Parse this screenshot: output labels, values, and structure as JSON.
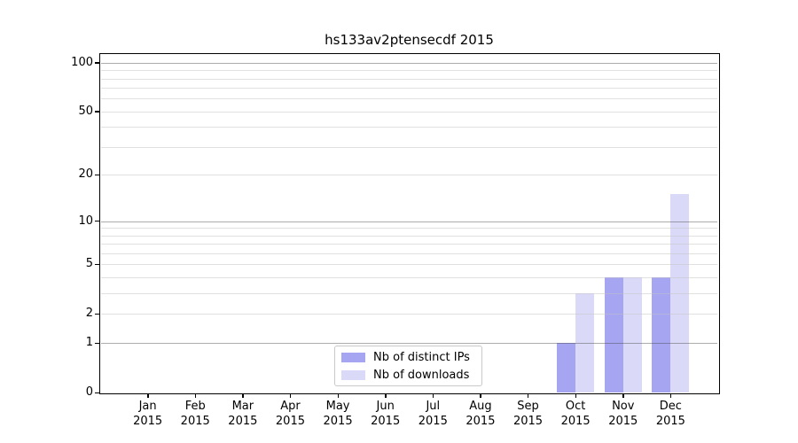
{
  "figure": {
    "title": "hs133av2ptensecdf 2015"
  },
  "legend": {
    "items": [
      {
        "label": "Nb of distinct IPs",
        "color": "#a5a5f2"
      },
      {
        "label": "Nb of downloads",
        "color": "#dadaf8"
      }
    ]
  },
  "chart_data": {
    "type": "bar",
    "title": "hs133av2ptensecdf 2015",
    "categories": [
      {
        "month": "Jan",
        "year": "2015"
      },
      {
        "month": "Feb",
        "year": "2015"
      },
      {
        "month": "Mar",
        "year": "2015"
      },
      {
        "month": "Apr",
        "year": "2015"
      },
      {
        "month": "May",
        "year": "2015"
      },
      {
        "month": "Jun",
        "year": "2015"
      },
      {
        "month": "Jul",
        "year": "2015"
      },
      {
        "month": "Aug",
        "year": "2015"
      },
      {
        "month": "Sep",
        "year": "2015"
      },
      {
        "month": "Oct",
        "year": "2015"
      },
      {
        "month": "Nov",
        "year": "2015"
      },
      {
        "month": "Dec",
        "year": "2015"
      }
    ],
    "series": [
      {
        "name": "Nb of distinct IPs",
        "color": "#a5a5f2",
        "values": [
          0,
          0,
          0,
          0,
          0,
          0,
          0,
          0,
          0,
          1,
          4,
          4
        ]
      },
      {
        "name": "Nb of downloads",
        "color": "#dadaf8",
        "values": [
          0,
          0,
          0,
          0,
          0,
          0,
          0,
          0,
          0,
          3,
          4,
          15
        ]
      }
    ],
    "xlabel": "",
    "ylabel": "",
    "yscale": "log1p",
    "ylim": [
      0,
      113
    ],
    "yticks": [
      0,
      1,
      2,
      5,
      10,
      20,
      50,
      100
    ],
    "ygrid_major": [
      1,
      10,
      100
    ],
    "ygrid_minor": [
      2,
      3,
      4,
      5,
      6,
      7,
      8,
      9,
      20,
      30,
      40,
      50,
      60,
      70,
      80,
      90
    ],
    "grid": true,
    "legend_position": "inside-bottom-center"
  }
}
